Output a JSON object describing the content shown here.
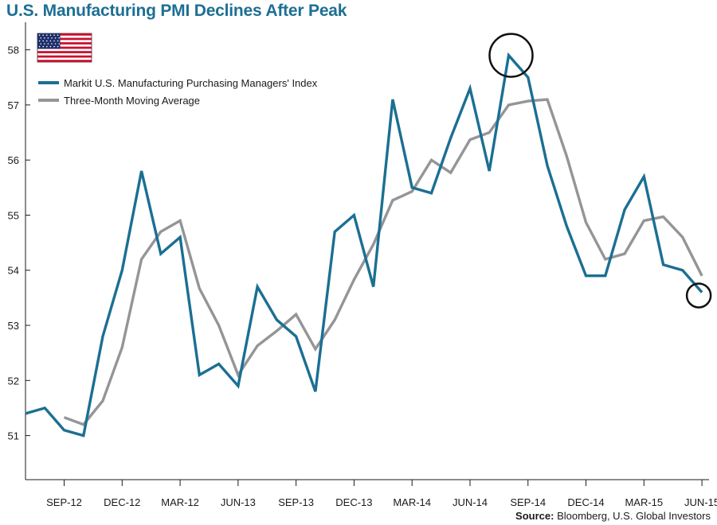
{
  "chart_data": {
    "type": "line",
    "title": "U.S. Manufacturing PMI Declines After Peak",
    "ylim": [
      50.2,
      58.5
    ],
    "yticks": [
      51,
      52,
      53,
      54,
      55,
      56,
      57,
      58
    ],
    "x_tick_labels": [
      "SEP-12",
      "DEC-12",
      "MAR-12",
      "JUN-13",
      "SEP-13",
      "DEC-13",
      "MAR-14",
      "JUN-14",
      "SEP-14",
      "DEC-14",
      "MAR-15",
      "JUN-15"
    ],
    "series": [
      {
        "name": "Markit U.S. Manufacturing Purchasing Managers' Index",
        "color": "#1b6f93",
        "values": [
          51.4,
          51.5,
          51.1,
          51.0,
          52.8,
          54.0,
          55.8,
          54.3,
          54.6,
          52.1,
          52.3,
          51.9,
          53.7,
          53.1,
          52.8,
          51.8,
          54.7,
          55.0,
          53.7,
          57.1,
          55.5,
          55.4,
          56.4,
          57.3,
          55.8,
          57.9,
          57.5,
          55.9,
          54.8,
          53.9,
          53.9,
          55.1,
          55.7,
          54.1,
          54.0,
          53.6
        ]
      },
      {
        "name": "Three-Month Moving Average",
        "color": "#939598",
        "values": [
          null,
          null,
          51.33,
          51.2,
          51.63,
          52.6,
          54.2,
          54.7,
          54.9,
          53.67,
          53.0,
          52.1,
          52.63,
          52.9,
          53.2,
          52.57,
          53.1,
          53.83,
          54.47,
          55.27,
          55.43,
          56.0,
          55.77,
          56.37,
          56.5,
          57.0,
          57.07,
          57.1,
          56.07,
          54.87,
          54.2,
          54.3,
          54.9,
          54.97,
          54.6,
          53.9
        ]
      }
    ],
    "annotations": [
      "circle at peak (SEP-14 area)",
      "circle at last value (JUN-15)"
    ],
    "legend_position": "top-left",
    "grid": false
  },
  "flag_icon": "us-flag-icon",
  "source": {
    "label": "Source:",
    "text": "Bloomberg, U.S. Global Investors"
  }
}
